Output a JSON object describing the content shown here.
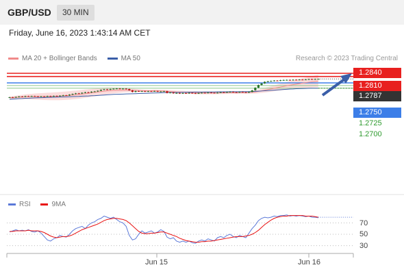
{
  "header": {
    "pair": "GBP/USD",
    "timeframe": "30 MIN"
  },
  "timestamp": "Friday, June 16, 2023 1:43:14 AM CET",
  "legend": [
    {
      "label": "MA 20 + Bollinger Bands",
      "color": "#f08a8a"
    },
    {
      "label": "MA 50",
      "color": "#3a5ea8"
    }
  ],
  "copyright": "Research © 2023 Trading Central",
  "rsi_legend": [
    {
      "label": "RSI",
      "color": "#5a78d8"
    },
    {
      "label": "9MA",
      "color": "#e81010"
    }
  ],
  "colors": {
    "resistance": "#e8201f",
    "pivot": "#3c7ee8",
    "support": "#8cc88c",
    "price": "#333333",
    "band": "#fbdcdc",
    "candle_up": "#2b7a2b",
    "candle_down": "#c01818"
  },
  "chart_data": {
    "type": "candlestick",
    "levels": [
      {
        "label": "1.2840",
        "value": 1.284,
        "kind": "resistance"
      },
      {
        "label": "1.2810",
        "value": 1.281,
        "kind": "resistance"
      },
      {
        "label": "1.2787",
        "value": 1.2787,
        "kind": "price"
      },
      {
        "label": "1.2750",
        "value": 1.275,
        "kind": "pivot"
      },
      {
        "label": "1.2725",
        "value": 1.2725,
        "kind": "support"
      },
      {
        "label": "1.2700",
        "value": 1.27,
        "kind": "support"
      }
    ],
    "close": [
      1.2615,
      1.2612,
      1.2618,
      1.2622,
      1.262,
      1.2625,
      1.2622,
      1.2626,
      1.2624,
      1.2621,
      1.2624,
      1.2622,
      1.2626,
      1.2624,
      1.2628,
      1.2626,
      1.263,
      1.2634,
      1.2632,
      1.264,
      1.2646,
      1.2652,
      1.265,
      1.2657,
      1.2662,
      1.266,
      1.2667,
      1.267,
      1.2676,
      1.2685,
      1.269,
      1.2686,
      1.2692,
      1.2695,
      1.2697,
      1.2694,
      1.2696,
      1.2692,
      1.268,
      1.2665,
      1.2673,
      1.267,
      1.2672,
      1.2669,
      1.2672,
      1.2671,
      1.2673,
      1.2668,
      1.267,
      1.2672,
      1.2655,
      1.266,
      1.2652,
      1.2655,
      1.265,
      1.2654,
      1.2652,
      1.2656,
      1.2653,
      1.265,
      1.2654,
      1.2657,
      1.2655,
      1.2659,
      1.2657,
      1.2654,
      1.2658,
      1.2662,
      1.266,
      1.2664,
      1.2666,
      1.2662,
      1.266,
      1.2665,
      1.2662,
      1.2658,
      1.2665,
      1.268,
      1.2705,
      1.273,
      1.2745,
      1.276,
      1.2765,
      1.2768,
      1.2772,
      1.277,
      1.2775,
      1.2777,
      1.2778,
      1.2776,
      1.278,
      1.2779,
      1.2781,
      1.278,
      1.2782,
      1.2785,
      1.2783,
      1.2786,
      1.2787
    ],
    "ma20": [
      1.261,
      1.2612,
      1.2614,
      1.2616,
      1.2618,
      1.262,
      1.2621,
      1.2621,
      1.2622,
      1.2622,
      1.2622,
      1.2622,
      1.2623,
      1.2623,
      1.2624,
      1.2625,
      1.2626,
      1.2628,
      1.263,
      1.2632,
      1.2635,
      1.2638,
      1.2641,
      1.2645,
      1.2649,
      1.2652,
      1.2656,
      1.266,
      1.2664,
      1.2668,
      1.2672,
      1.2675,
      1.2677,
      1.2679,
      1.268,
      1.2681,
      1.2682,
      1.2682,
      1.2681,
      1.268,
      1.2679,
      1.2678,
      1.2677,
      1.2676,
      1.2675,
      1.2675,
      1.2676,
      1.2675,
      1.2674,
      1.2673,
      1.2671,
      1.2669,
      1.2667,
      1.2665,
      1.2664,
      1.2663,
      1.2661,
      1.266,
      1.2659,
      1.2658,
      1.2657,
      1.2656,
      1.2656,
      1.2656,
      1.2656,
      1.2656,
      1.2656,
      1.2657,
      1.2657,
      1.2658,
      1.2658,
      1.2658,
      1.2658,
      1.2659,
      1.2659,
      1.2659,
      1.266,
      1.2662,
      1.2665,
      1.267,
      1.2675,
      1.2681,
      1.2687,
      1.2693,
      1.2699,
      1.2705,
      1.2711,
      1.2717,
      1.2723,
      1.2728,
      1.2733,
      1.2738,
      1.2743,
      1.2748,
      1.2752,
      1.2756,
      1.276,
      1.2764,
      1.2767
    ],
    "ma50": [
      1.2596,
      1.2598,
      1.26,
      1.2602,
      1.2603,
      1.2605,
      1.2606,
      1.2608,
      1.2609,
      1.261,
      1.2611,
      1.2612,
      1.2613,
      1.2614,
      1.2615,
      1.2616,
      1.2617,
      1.2618,
      1.2619,
      1.262,
      1.2621,
      1.2622,
      1.2623,
      1.2625,
      1.2626,
      1.2627,
      1.2629,
      1.263,
      1.2632,
      1.2634,
      1.2636,
      1.2638,
      1.264,
      1.2642,
      1.2643,
      1.2644,
      1.2645,
      1.2646,
      1.2647,
      1.2648,
      1.2649,
      1.265,
      1.2651,
      1.2652,
      1.2653,
      1.2654,
      1.2655,
      1.2656,
      1.2657,
      1.2658,
      1.2659,
      1.266,
      1.266,
      1.2661,
      1.2661,
      1.2662,
      1.2662,
      1.2663,
      1.2663,
      1.2664,
      1.2664,
      1.2664,
      1.2665,
      1.2665,
      1.2665,
      1.2665,
      1.2666,
      1.2666,
      1.2666,
      1.2666,
      1.2667,
      1.2667,
      1.2667,
      1.2667,
      1.2668,
      1.2668,
      1.2668,
      1.2669,
      1.267,
      1.2672,
      1.2674,
      1.2676,
      1.2678,
      1.268,
      1.2682,
      1.2684,
      1.2686,
      1.2688,
      1.269,
      1.2692,
      1.2693,
      1.2695,
      1.2696,
      1.2697,
      1.2698,
      1.2699,
      1.27,
      1.27,
      1.27
    ],
    "rsi": [
      54,
      56,
      58,
      56,
      57,
      56,
      58,
      55,
      54,
      56,
      52,
      46,
      40,
      38,
      42,
      44,
      48,
      46,
      45,
      50,
      56,
      60,
      62,
      64,
      60,
      66,
      70,
      72,
      76,
      78,
      82,
      80,
      78,
      80,
      76,
      72,
      70,
      64,
      48,
      40,
      42,
      50,
      56,
      52,
      54,
      56,
      52,
      54,
      58,
      55,
      45,
      42,
      44,
      38,
      36,
      38,
      36,
      38,
      35,
      34,
      38,
      40,
      38,
      42,
      40,
      38,
      44,
      46,
      44,
      48,
      50,
      46,
      44,
      48,
      46,
      44,
      52,
      60,
      66,
      74,
      78,
      80,
      79,
      80,
      82,
      81,
      83,
      83,
      84,
      82,
      83,
      82,
      83,
      82,
      81,
      82,
      80,
      80,
      79
    ],
    "rsi9": [
      55,
      55,
      56,
      56,
      56,
      56,
      57,
      56,
      56,
      56,
      55,
      53,
      50,
      47,
      45,
      44,
      45,
      46,
      46,
      47,
      49,
      52,
      55,
      58,
      60,
      62,
      64,
      66,
      68,
      71,
      74,
      76,
      77,
      78,
      78,
      77,
      76,
      74,
      70,
      65,
      60,
      55,
      52,
      51,
      51,
      52,
      52,
      53,
      54,
      54,
      52,
      50,
      48,
      46,
      43,
      41,
      39,
      38,
      37,
      36,
      36,
      37,
      37,
      38,
      38,
      39,
      40,
      41,
      42,
      43,
      44,
      45,
      46,
      46,
      46,
      47,
      48,
      50,
      53,
      57,
      62,
      67,
      71,
      75,
      78,
      80,
      81,
      82,
      82,
      83,
      83,
      83,
      83,
      83,
      82,
      82,
      82,
      81,
      80
    ],
    "x_tick_labels": [
      "Jun 15",
      "Jun 16"
    ],
    "rsi_ticks": [
      70,
      50,
      30
    ]
  }
}
